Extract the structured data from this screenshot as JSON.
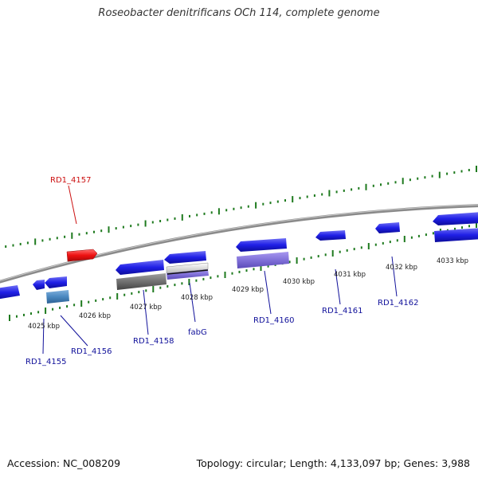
{
  "title": "Roseobacter denitrificans OCh 114, complete genome",
  "footer": {
    "accession": "Accession: NC_008209",
    "summary": "Topology: circular; Length: 4,133,097 bp; Genes: 3,988"
  },
  "colors": {
    "forward_gene": "#1f1fe6",
    "highlight_gene": "#ee1111",
    "grey_gene": "#707070",
    "purple_gene": "#8070d8",
    "steelblue_gene": "#4a88c0",
    "label_blue": "#10109a",
    "label_red": "#cc1111",
    "tick_green": "#1e7a1e",
    "backbone": "#8a8a8a"
  },
  "kbp_labels": [
    "4025 kbp",
    "4026 kbp",
    "4027 kbp",
    "4028 kbp",
    "4029 kbp",
    "4030 kbp",
    "4031 kbp",
    "4032 kbp",
    "4033 kbp"
  ],
  "gene_labels": [
    {
      "text": "RD1_4157",
      "color": "red"
    },
    {
      "text": "RD1_4155",
      "color": "blue"
    },
    {
      "text": "RD1_4156",
      "color": "blue"
    },
    {
      "text": "RD1_4158",
      "color": "blue"
    },
    {
      "text": "fabG",
      "color": "blue"
    },
    {
      "text": "RD1_4160",
      "color": "blue"
    },
    {
      "text": "RD1_4161",
      "color": "blue"
    },
    {
      "text": "RD1_4162",
      "color": "blue"
    }
  ]
}
